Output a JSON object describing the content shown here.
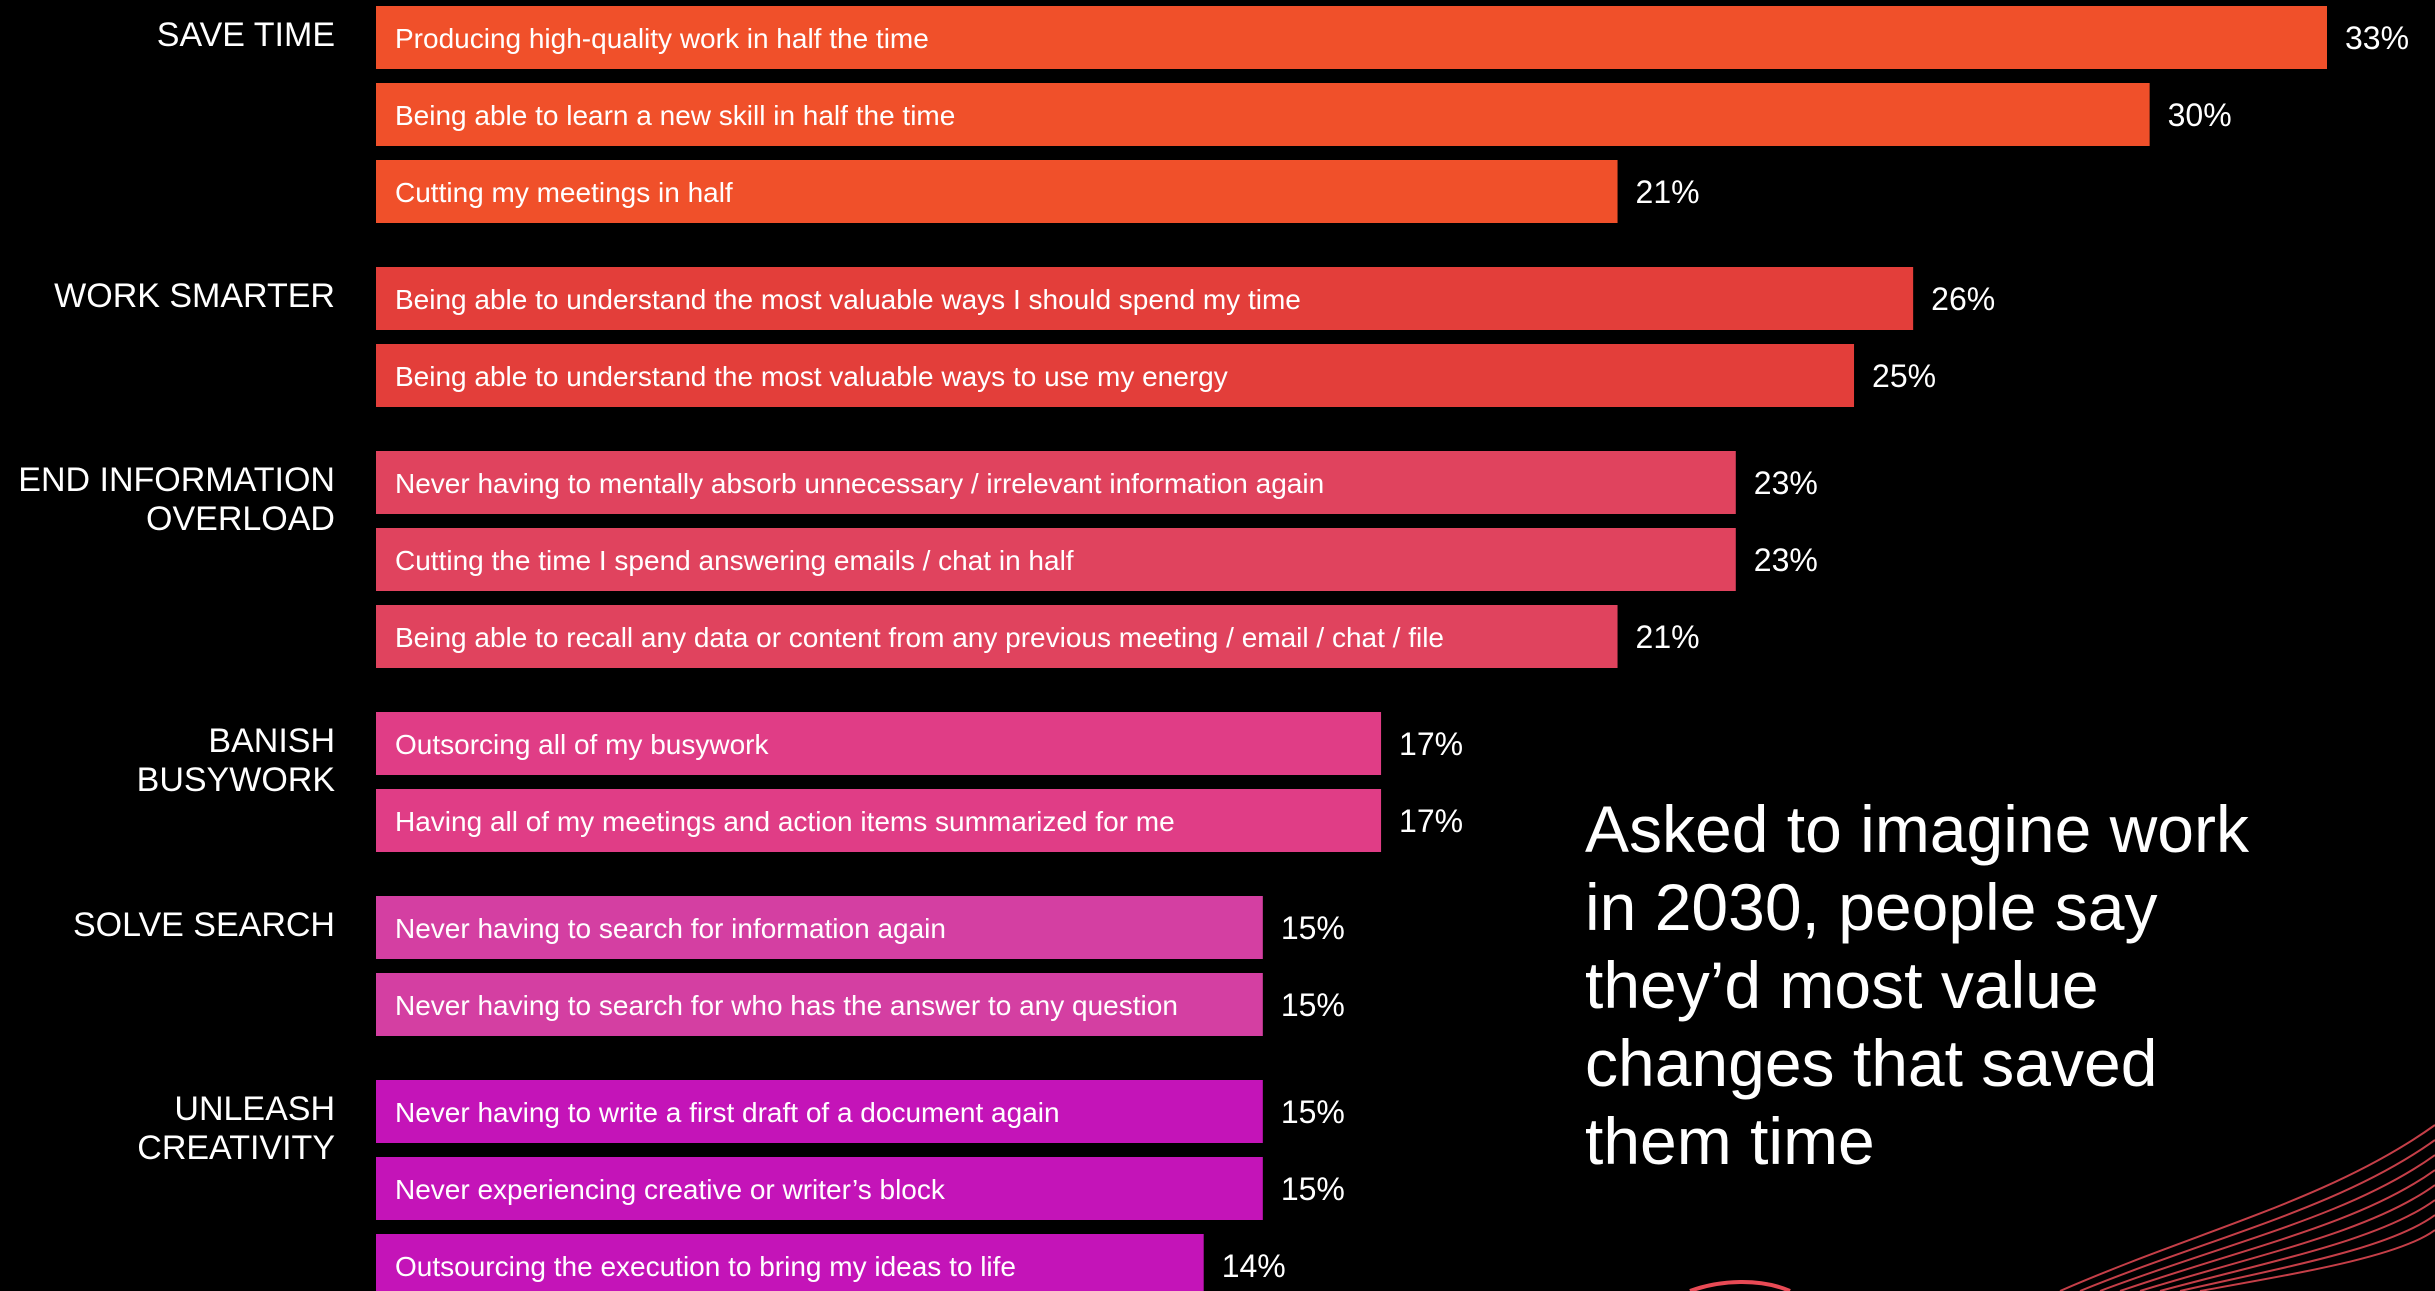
{
  "headline": "Asked to imagine work\nin 2030, people say\nthey’d most value\nchanges that saved\nthem time",
  "chart_data": {
    "type": "bar",
    "orientation": "horizontal",
    "xlim": [
      0,
      33
    ],
    "value_suffix": "%",
    "groups": [
      {
        "label": "SAVE TIME",
        "color": "#F0502A",
        "items": [
          {
            "label": "Producing high-quality work in half the time",
            "value": 33
          },
          {
            "label": "Being able to learn a new skill in half the time",
            "value": 30
          },
          {
            "label": "Cutting my meetings in half",
            "value": 21
          }
        ]
      },
      {
        "label": "WORK SMARTER",
        "color": "#E33E3A",
        "items": [
          {
            "label": "Being able to understand the most valuable ways I should spend my time",
            "value": 26
          },
          {
            "label": "Being able to understand the most valuable ways to use my energy",
            "value": 25
          }
        ]
      },
      {
        "label": "END INFORMATION\nOVERLOAD",
        "color": "#E0435E",
        "items": [
          {
            "label": "Never having to mentally absorb unnecessary / irrelevant information again",
            "value": 23
          },
          {
            "label": "Cutting the time I spend answering emails / chat in half",
            "value": 23
          },
          {
            "label": "Being able to recall any data or content from any previous meeting / email / chat / file",
            "value": 21
          }
        ]
      },
      {
        "label": "BANISH\nBUSYWORK",
        "color": "#E03D86",
        "items": [
          {
            "label": "Outsorcing all of my busywork",
            "value": 17
          },
          {
            "label": "Having all of my meetings and action items summarized for me",
            "value": 17
          }
        ]
      },
      {
        "label": "SOLVE SEARCH",
        "color": "#D43FA2",
        "items": [
          {
            "label": "Never having to search for information again",
            "value": 15
          },
          {
            "label": "Never having to search for who has the answer to any question",
            "value": 15
          }
        ]
      },
      {
        "label": "UNLEASH\nCREATIVITY",
        "color": "#C414B8",
        "items": [
          {
            "label": "Never having to write a first draft of a document again",
            "value": 15
          },
          {
            "label": "Never experiencing creative or writer’s block",
            "value": 15
          },
          {
            "label": "Outsourcing the execution to bring my ideas to life",
            "value": 14
          }
        ]
      }
    ]
  }
}
